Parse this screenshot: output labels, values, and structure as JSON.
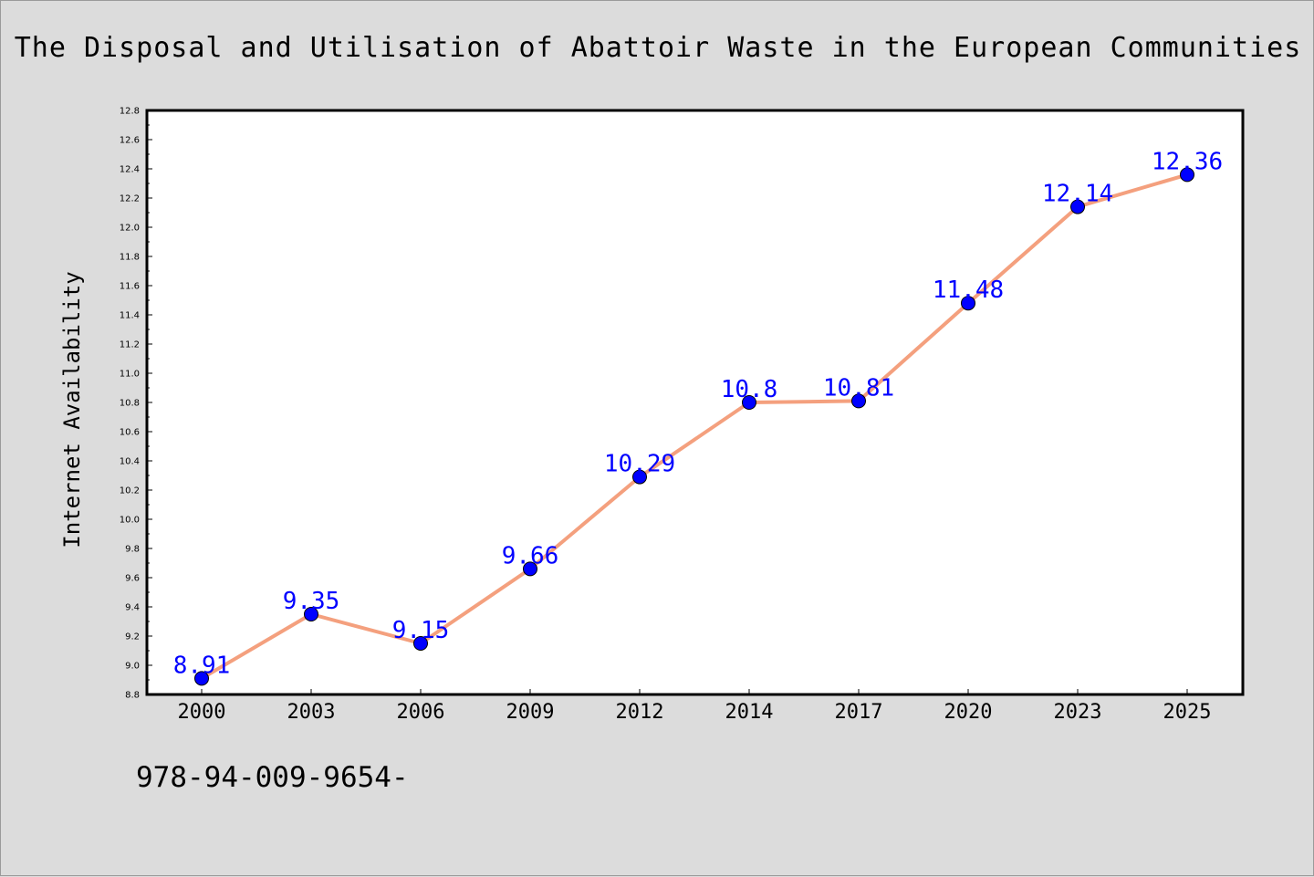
{
  "chart_data": {
    "type": "line",
    "title": "The Disposal and Utilisation of Abattoir Waste in the European Communities",
    "xlabel": "",
    "ylabel": "Internet Availability",
    "categories": [
      "2000",
      "2003",
      "2006",
      "2009",
      "2012",
      "2014",
      "2017",
      "2020",
      "2023",
      "2025"
    ],
    "series": [
      {
        "values": [
          8.91,
          9.35,
          9.15,
          9.66,
          10.29,
          10.8,
          10.81,
          11.48,
          12.14,
          12.36
        ]
      }
    ],
    "data_labels": [
      "8.91",
      "9.35",
      "9.15",
      "9.66",
      "10.29",
      "10.8",
      "10.81",
      "11.48",
      "12.14",
      "12.36"
    ],
    "ylim": [
      8.8,
      12.8
    ],
    "yticks": [
      "8.8",
      "9.0",
      "9.2",
      "9.4",
      "9.6",
      "9.8",
      "10.0",
      "10.2",
      "10.4",
      "10.6",
      "10.8",
      "11.0",
      "11.2",
      "11.4",
      "11.6",
      "11.8",
      "12.0",
      "12.2",
      "12.4",
      "12.6",
      "12.8"
    ],
    "grid": false,
    "legend": "none",
    "colors": {
      "line": "#f4a07e",
      "marker": "#0000ff",
      "data_label": "#0000ff",
      "background": "#dcdcdc",
      "plot_area": "#ffffff"
    }
  },
  "footer_text": "978-94-009-9654-"
}
